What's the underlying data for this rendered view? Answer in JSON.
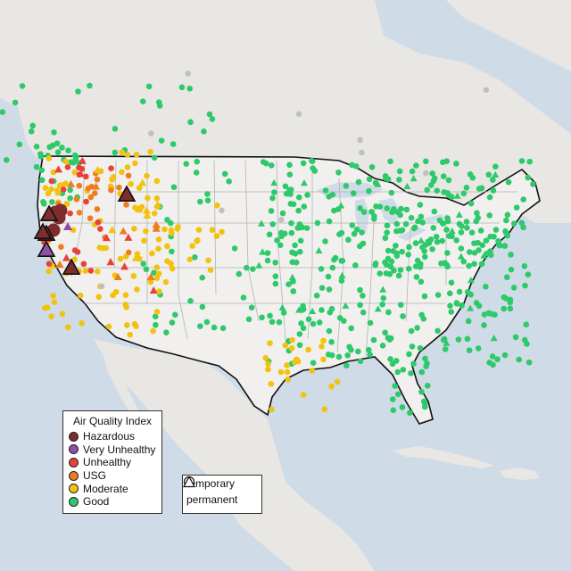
{
  "legend_aqi": {
    "title": "Air Quality Index",
    "items": [
      {
        "label": "Hazardous",
        "color": "#7e2d2d"
      },
      {
        "label": "Very Unhealthy",
        "color": "#8e4fa5"
      },
      {
        "label": "Unhealthy",
        "color": "#e8413a"
      },
      {
        "label": "USG",
        "color": "#ed7d1f"
      },
      {
        "label": "Moderate",
        "color": "#f2c20f"
      },
      {
        "label": "Good",
        "color": "#2ec96b"
      }
    ]
  },
  "legend_type": {
    "items": [
      {
        "label": "temporary",
        "shape": "circle"
      },
      {
        "label": "permanent",
        "shape": "triangle"
      }
    ]
  },
  "colors": {
    "water": "#cfdbe6",
    "land": "#e9e7e3",
    "us_land": "#f1f0ee",
    "border": "#111111",
    "state_line": "#b3b3b3",
    "no_data": "#c0c0c0"
  },
  "stations_note": ""
}
